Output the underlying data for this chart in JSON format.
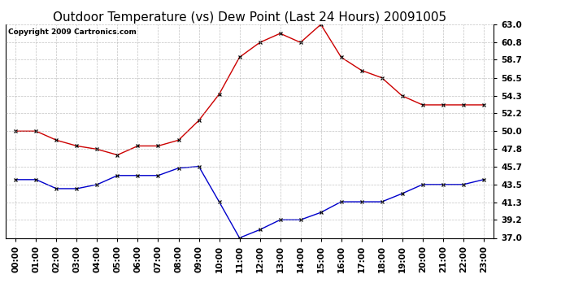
{
  "title": "Outdoor Temperature (vs) Dew Point (Last 24 Hours) 20091005",
  "copyright_text": "Copyright 2009 Cartronics.com",
  "x_labels": [
    "00:00",
    "01:00",
    "02:00",
    "03:00",
    "04:00",
    "05:00",
    "06:00",
    "07:00",
    "08:00",
    "09:00",
    "10:00",
    "11:00",
    "12:00",
    "13:00",
    "14:00",
    "15:00",
    "16:00",
    "17:00",
    "18:00",
    "19:00",
    "20:00",
    "21:00",
    "22:00",
    "23:00"
  ],
  "temp_data": [
    50.0,
    50.0,
    48.9,
    48.2,
    47.8,
    47.1,
    48.2,
    48.2,
    48.9,
    51.3,
    54.5,
    59.0,
    60.8,
    61.9,
    60.8,
    63.0,
    59.0,
    57.4,
    56.5,
    54.3,
    53.2,
    53.2,
    53.2,
    53.2
  ],
  "dew_data": [
    44.1,
    44.1,
    43.0,
    43.0,
    43.5,
    44.6,
    44.6,
    44.6,
    45.5,
    45.7,
    41.4,
    37.0,
    38.0,
    39.2,
    39.2,
    40.1,
    41.4,
    41.4,
    41.4,
    42.4,
    43.5,
    43.5,
    43.5,
    44.1
  ],
  "temp_color": "#cc0000",
  "dew_color": "#0000cc",
  "background_color": "#ffffff",
  "grid_color": "#aaaaaa",
  "ylim": [
    37.0,
    63.0
  ],
  "yticks": [
    37.0,
    39.2,
    41.3,
    43.5,
    45.7,
    47.8,
    50.0,
    52.2,
    54.3,
    56.5,
    58.7,
    60.8,
    63.0
  ],
  "title_fontsize": 11,
  "copyright_fontsize": 6.5,
  "tick_fontsize": 7.5
}
